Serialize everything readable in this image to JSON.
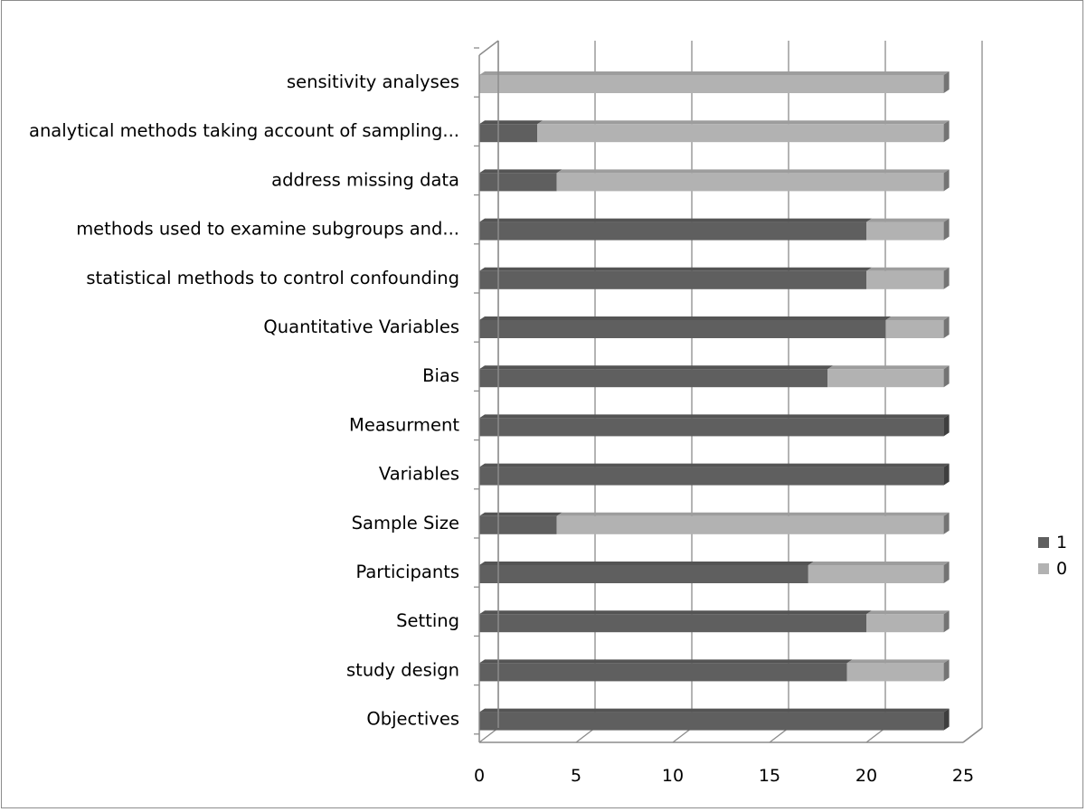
{
  "chart_data": {
    "type": "bar",
    "orientation": "horizontal",
    "stacked": true,
    "style": "3d",
    "categories": [
      "Objectives",
      "study design",
      "Setting",
      "Participants",
      "Sample Size",
      "Variables",
      "Measurment",
      "Bias",
      "Quantitative Variables",
      "statistical methods to control confounding",
      "methods used to examine subgroups and...",
      "address missing data",
      "analytical methods taking account of sampling...",
      "sensitivity analyses"
    ],
    "series": [
      {
        "name": "1",
        "color": "#5f5f5f",
        "values": [
          24,
          19,
          20,
          17,
          4,
          24,
          24,
          18,
          21,
          20,
          20,
          4,
          3,
          0
        ]
      },
      {
        "name": "0",
        "color": "#b2b2b2",
        "values": [
          0,
          5,
          4,
          7,
          20,
          0,
          0,
          6,
          3,
          4,
          4,
          20,
          21,
          24
        ]
      }
    ],
    "xlim": [
      0,
      25
    ],
    "x_ticks": [
      "0",
      "5",
      "10",
      "15",
      "20",
      "25"
    ],
    "grid": true,
    "legend_position": "right",
    "title": "",
    "xlabel": "",
    "ylabel": ""
  }
}
